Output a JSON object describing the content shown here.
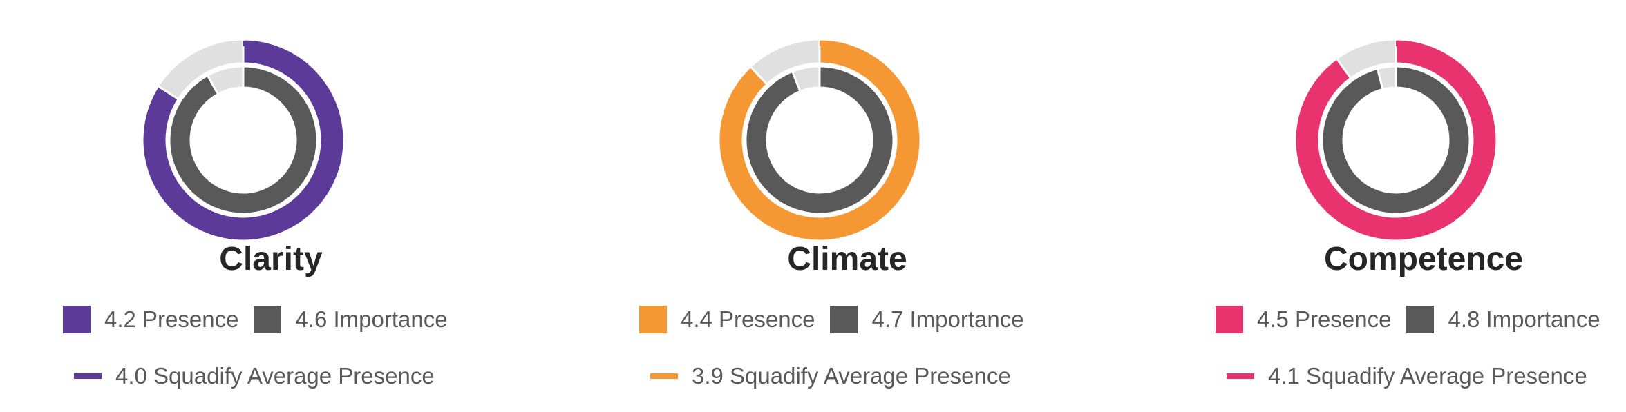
{
  "colors": {
    "importance": "#595959",
    "track": "#e0e0e0",
    "separator": "#ffffff"
  },
  "chart_data": [
    {
      "type": "radial-donut",
      "title": "Clarity",
      "max": 5,
      "color": "#5b3a99",
      "presence": 4.2,
      "importance": 4.6,
      "average_presence": 4.0,
      "legend": {
        "presence_label": "4.2 Presence",
        "importance_label": "4.6 Importance",
        "average_label": "4.0 Squadify Average Presence"
      }
    },
    {
      "type": "radial-donut",
      "title": "Climate",
      "max": 5,
      "color": "#f59733",
      "presence": 4.4,
      "importance": 4.7,
      "average_presence": 3.9,
      "legend": {
        "presence_label": "4.4 Presence",
        "importance_label": "4.7 Importance",
        "average_label": "3.9 Squadify Average Presence"
      }
    },
    {
      "type": "radial-donut",
      "title": "Competence",
      "max": 5,
      "color": "#e8336f",
      "presence": 4.5,
      "importance": 4.8,
      "average_presence": 4.1,
      "legend": {
        "presence_label": "4.5 Presence",
        "importance_label": "4.8 Importance",
        "average_label": "4.1 Squadify Average Presence"
      }
    }
  ]
}
